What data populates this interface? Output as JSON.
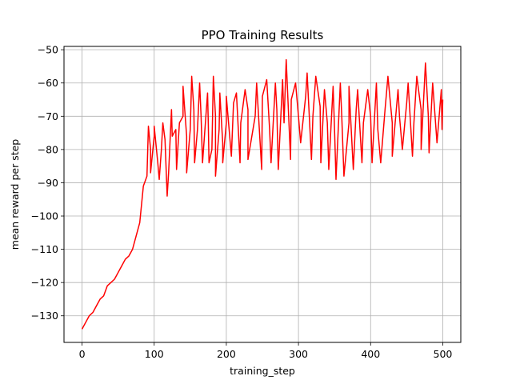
{
  "chart_data": {
    "type": "line",
    "title": "PPO Training Results",
    "xlabel": "training_step",
    "ylabel": "mean reward per step",
    "xlim": [
      -25,
      525
    ],
    "ylim": [
      -138,
      -49
    ],
    "xticks": [
      0,
      100,
      200,
      300,
      400,
      500
    ],
    "yticks": [
      -130,
      -120,
      -110,
      -100,
      -90,
      -80,
      -70,
      -60,
      -50
    ],
    "grid": true,
    "series": [
      {
        "color": "#ff0000",
        "points": [
          [
            0,
            -134
          ],
          [
            5,
            -132
          ],
          [
            10,
            -130
          ],
          [
            15,
            -129
          ],
          [
            20,
            -127
          ],
          [
            25,
            -125
          ],
          [
            30,
            -124
          ],
          [
            35,
            -121
          ],
          [
            40,
            -120
          ],
          [
            45,
            -119
          ],
          [
            50,
            -117
          ],
          [
            55,
            -115
          ],
          [
            60,
            -113
          ],
          [
            65,
            -112
          ],
          [
            70,
            -110
          ],
          [
            75,
            -106
          ],
          [
            80,
            -102
          ],
          [
            85,
            -91
          ],
          [
            90,
            -88
          ],
          [
            95,
            -80
          ],
          [
            100,
            -76
          ],
          [
            105,
            -84
          ],
          [
            110,
            -80
          ],
          [
            115,
            -77
          ],
          [
            120,
            -87
          ],
          [
            125,
            -76
          ],
          [
            130,
            -74
          ],
          [
            135,
            -72
          ],
          [
            140,
            -70
          ],
          [
            145,
            -76
          ],
          [
            150,
            -74
          ],
          [
            155,
            -68
          ],
          [
            160,
            -74
          ],
          [
            165,
            -70
          ],
          [
            170,
            -75
          ],
          [
            175,
            -72
          ],
          [
            180,
            -80
          ],
          [
            185,
            -70
          ],
          [
            190,
            -74
          ],
          [
            195,
            -78
          ],
          [
            200,
            -72
          ],
          [
            210,
            -66
          ],
          [
            220,
            -72
          ],
          [
            230,
            -68
          ],
          [
            240,
            -70
          ],
          [
            250,
            -64
          ],
          [
            260,
            -74
          ],
          [
            270,
            -68
          ],
          [
            280,
            -72
          ],
          [
            290,
            -65
          ],
          [
            300,
            -70
          ],
          [
            310,
            -64
          ],
          [
            320,
            -70
          ],
          [
            330,
            -67
          ],
          [
            340,
            -72
          ],
          [
            350,
            -74
          ],
          [
            360,
            -70
          ],
          [
            370,
            -72
          ],
          [
            380,
            -68
          ],
          [
            390,
            -72
          ],
          [
            400,
            -70
          ],
          [
            410,
            -74
          ],
          [
            420,
            -68
          ],
          [
            430,
            -72
          ],
          [
            440,
            -70
          ],
          [
            450,
            -66
          ],
          [
            460,
            -72
          ],
          [
            470,
            -68
          ],
          [
            480,
            -70
          ],
          [
            490,
            -72
          ],
          [
            500,
            -65
          ]
        ],
        "extremes": [
          [
            92,
            -73
          ],
          [
            95,
            -87
          ],
          [
            100,
            -73
          ],
          [
            107,
            -89
          ],
          [
            112,
            -72
          ],
          [
            118,
            -94
          ],
          [
            124,
            -68
          ],
          [
            131,
            -86
          ],
          [
            140,
            -61
          ],
          [
            145,
            -87
          ],
          [
            152,
            -58
          ],
          [
            156,
            -84
          ],
          [
            163,
            -60
          ],
          [
            167,
            -84
          ],
          [
            174,
            -63
          ],
          [
            176,
            -84
          ],
          [
            182,
            -58
          ],
          [
            185,
            -88
          ],
          [
            191,
            -63
          ],
          [
            195,
            -84
          ],
          [
            200,
            -64
          ],
          [
            207,
            -82
          ],
          [
            214,
            -63
          ],
          [
            219,
            -84
          ],
          [
            226,
            -62
          ],
          [
            230,
            -83
          ],
          [
            242,
            -60
          ],
          [
            249,
            -86
          ],
          [
            256,
            -59
          ],
          [
            262,
            -84
          ],
          [
            268,
            -60
          ],
          [
            272,
            -86
          ],
          [
            278,
            -59
          ],
          [
            283,
            -53
          ],
          [
            289,
            -83
          ],
          [
            296,
            -60
          ],
          [
            303,
            -78
          ],
          [
            312,
            -57
          ],
          [
            318,
            -83
          ],
          [
            324,
            -58
          ],
          [
            331,
            -84
          ],
          [
            336,
            -62
          ],
          [
            342,
            -86
          ],
          [
            348,
            -61
          ],
          [
            352,
            -89
          ],
          [
            358,
            -60
          ],
          [
            363,
            -88
          ],
          [
            370,
            -61
          ],
          [
            376,
            -86
          ],
          [
            382,
            -62
          ],
          [
            388,
            -84
          ],
          [
            396,
            -62
          ],
          [
            402,
            -84
          ],
          [
            408,
            -60
          ],
          [
            414,
            -84
          ],
          [
            424,
            -58
          ],
          [
            430,
            -82
          ],
          [
            438,
            -62
          ],
          [
            444,
            -80
          ],
          [
            452,
            -60
          ],
          [
            458,
            -82
          ],
          [
            464,
            -58
          ],
          [
            470,
            -80
          ],
          [
            476,
            -54
          ],
          [
            481,
            -81
          ],
          [
            486,
            -60
          ],
          [
            492,
            -78
          ],
          [
            498,
            -62
          ],
          [
            499,
            -74
          ]
        ]
      }
    ]
  }
}
